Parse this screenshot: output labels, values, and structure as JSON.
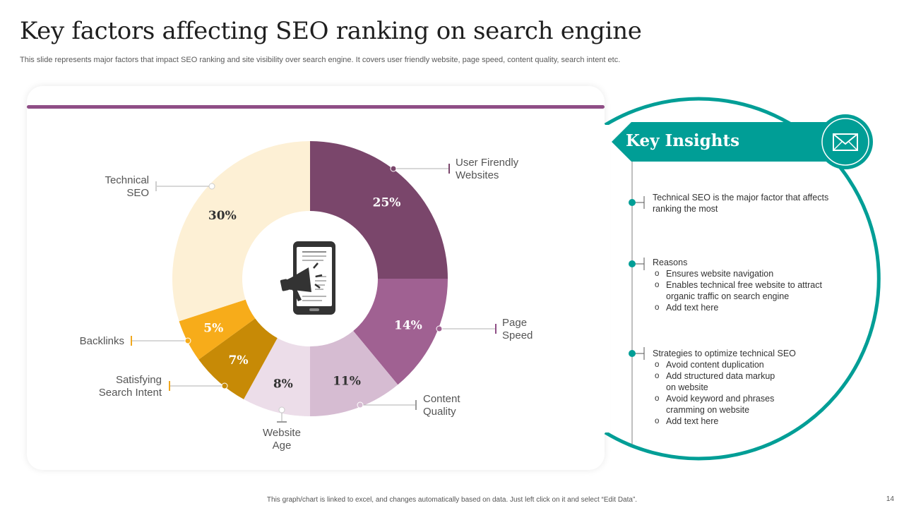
{
  "slide": {
    "title": "Key factors affecting SEO ranking on search engine",
    "subtitle": "This slide represents major factors that impact SEO ranking and site visibility over search engine. It covers user friendly website, page speed, content quality, search intent etc.",
    "footer_note": "This graph/chart is linked to excel, and changes automatically based on data. Just left click on it and select “Edit Data”.",
    "page_number": "14"
  },
  "chart_data": {
    "type": "pie",
    "title": "",
    "slices": [
      {
        "label": "User Firendly Websites",
        "label_lines": [
          "User Firendly",
          "Websites"
        ],
        "value": 25,
        "value_label": "25%",
        "color": "#7a466b"
      },
      {
        "label": "Page Speed",
        "label_lines": [
          "Page",
          "Speed"
        ],
        "value": 14,
        "value_label": "14%",
        "color": "#a06192"
      },
      {
        "label": "Content Quality",
        "label_lines": [
          "Content",
          "Quality"
        ],
        "value": 11,
        "value_label": "11%",
        "color": "#d6bcd2"
      },
      {
        "label": "Website Age",
        "label_lines": [
          "Website",
          "Age"
        ],
        "value": 8,
        "value_label": "8%",
        "color": "#ecdde9"
      },
      {
        "label": "Satisfying Search Intent",
        "label_lines": [
          "Satisfying",
          "Search Intent"
        ],
        "value": 7,
        "value_label": "7%",
        "color": "#c78a06"
      },
      {
        "label": "Backlinks",
        "label_lines": [
          "Backlinks"
        ],
        "value": 5,
        "value_label": "5%",
        "color": "#f7ac1a"
      },
      {
        "label": "Technical SEO",
        "label_lines": [
          "Technical",
          "SEO"
        ],
        "value": 30,
        "value_label": "30%",
        "color": "#fdf0d5"
      }
    ],
    "center_icon": "mobile-megaphone-icon"
  },
  "insights": {
    "heading": "Key Insights",
    "icon": "envelope-icon",
    "accent_color": "#009e96",
    "blocks": [
      {
        "lines": [
          "Technical SEO is the major factor that affects",
          "ranking the most"
        ],
        "bullets": []
      },
      {
        "lines": [
          "Reasons"
        ],
        "bullets": [
          [
            "Ensures website navigation"
          ],
          [
            "Enables technical free website to attract",
            "organic traffic on search engine"
          ],
          [
            "Add text here"
          ]
        ]
      },
      {
        "lines": [
          "Strategies to optimize technical SEO"
        ],
        "bullets": [
          [
            "Avoid content duplication"
          ],
          [
            "Add structured data markup",
            "on website"
          ],
          [
            "Avoid keyword and phrases",
            "cramming on website"
          ],
          [
            "Add text here"
          ]
        ]
      }
    ]
  }
}
